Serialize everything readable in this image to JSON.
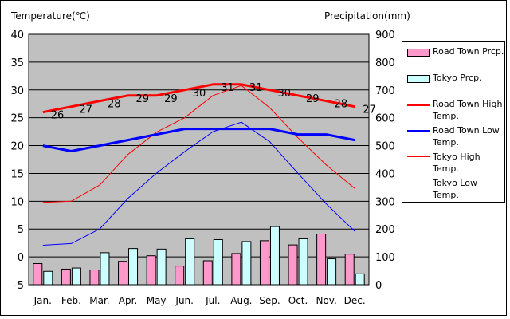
{
  "chart_data": {
    "type": "bar+line",
    "left_axis_title": "Temperature(℃)",
    "right_axis_title": "Precipitation(mm)",
    "categories": [
      "Jan.",
      "Feb.",
      "Mar.",
      "Apr.",
      "May",
      "Jun.",
      "Jul.",
      "Aug.",
      "Sep.",
      "Oct.",
      "Nov.",
      "Dec."
    ],
    "left_ylim": [
      -5,
      40
    ],
    "left_ticks": [
      "40",
      "35",
      "30",
      "25",
      "20",
      "15",
      "10",
      "5",
      "0",
      "-5"
    ],
    "right_ylim": [
      0,
      900
    ],
    "right_ticks": [
      "900",
      "800",
      "700",
      "600",
      "500",
      "400",
      "300",
      "200",
      "100",
      "0"
    ],
    "grid": true,
    "legend_position": "right",
    "bar_series": [
      {
        "name": "Road Town Prcp.",
        "color": "#ff99cc",
        "values": [
          76,
          56,
          53,
          84,
          104,
          67,
          86,
          112,
          158,
          143,
          182,
          110
        ]
      },
      {
        "name": "Tokyo Prcp.",
        "color": "#ccffff",
        "values": [
          48,
          60,
          115,
          130,
          128,
          165,
          162,
          155,
          209,
          165,
          93,
          39
        ]
      }
    ],
    "line_series": [
      {
        "name": "Road Town High Temp.",
        "color": "#ff0000",
        "width": 3,
        "values": [
          26,
          27,
          28,
          29,
          29,
          30,
          31,
          31,
          30,
          29,
          28,
          27
        ]
      },
      {
        "name": "Road Town Low Temp.",
        "color": "#0000ff",
        "width": 3,
        "values": [
          20,
          19,
          20,
          21,
          22,
          23,
          23,
          23,
          23,
          22,
          22,
          21
        ]
      },
      {
        "name": "Tokyo High Temp.",
        "color": "#ff0000",
        "width": 1,
        "values": [
          9.8,
          10,
          12.9,
          18.4,
          22.4,
          25,
          29,
          30.8,
          26.8,
          21.4,
          16.5,
          12.3
        ]
      },
      {
        "name": "Tokyo Low Temp.",
        "color": "#0000ff",
        "width": 1,
        "values": [
          2.1,
          2.4,
          5,
          10.5,
          15,
          18.9,
          22.5,
          24.2,
          20.7,
          15,
          9.5,
          4.6
        ]
      }
    ],
    "data_labels": [
      "26",
      "27",
      "28",
      "29",
      "29",
      "30",
      "31",
      "31",
      "30",
      "29",
      "28",
      "27"
    ],
    "plot_background": "#c0c0c0"
  }
}
